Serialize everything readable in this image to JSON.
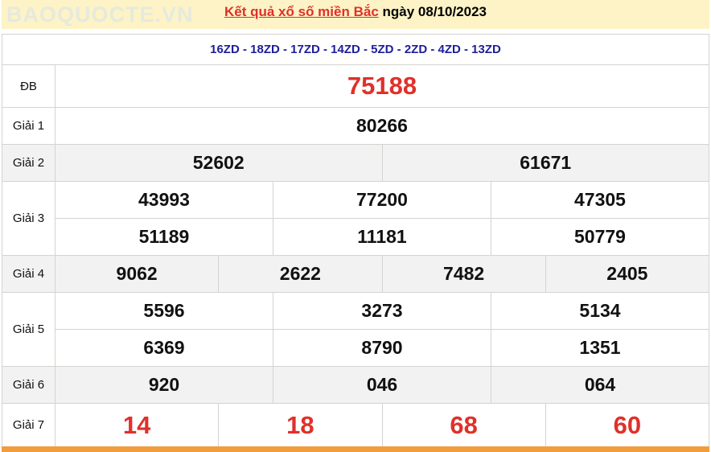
{
  "header": {
    "title_link": "Kết quả xổ số miền Bắc",
    "date_text": "ngày 08/10/2023"
  },
  "codes": "16ZD - 18ZD - 17ZD - 14ZD - 5ZD - 2ZD - 4ZD - 13ZD",
  "prizes": {
    "db": {
      "label": "ĐB",
      "values": [
        "75188"
      ]
    },
    "g1": {
      "label": "Giải 1",
      "values": [
        "80266"
      ]
    },
    "g2": {
      "label": "Giải 2",
      "values": [
        "52602",
        "61671"
      ]
    },
    "g3": {
      "label": "Giải 3",
      "values": [
        "43993",
        "77200",
        "47305",
        "51189",
        "11181",
        "50779"
      ]
    },
    "g4": {
      "label": "Giải 4",
      "values": [
        "9062",
        "2622",
        "7482",
        "2405"
      ]
    },
    "g5": {
      "label": "Giải 5",
      "values": [
        "5596",
        "3273",
        "5134",
        "6369",
        "8790",
        "1351"
      ]
    },
    "g6": {
      "label": "Giải 6",
      "values": [
        "920",
        "046",
        "064"
      ]
    },
    "g7": {
      "label": "Giải 7",
      "values": [
        "14",
        "18",
        "68",
        "60"
      ]
    }
  },
  "watermark": "BAOQUOCTE.VN",
  "colors": {
    "accent_red": "#e0302a",
    "code_blue": "#1d1e9a",
    "header_bg": "#fdf3c6",
    "bottom_bar": "#f29d3d"
  }
}
